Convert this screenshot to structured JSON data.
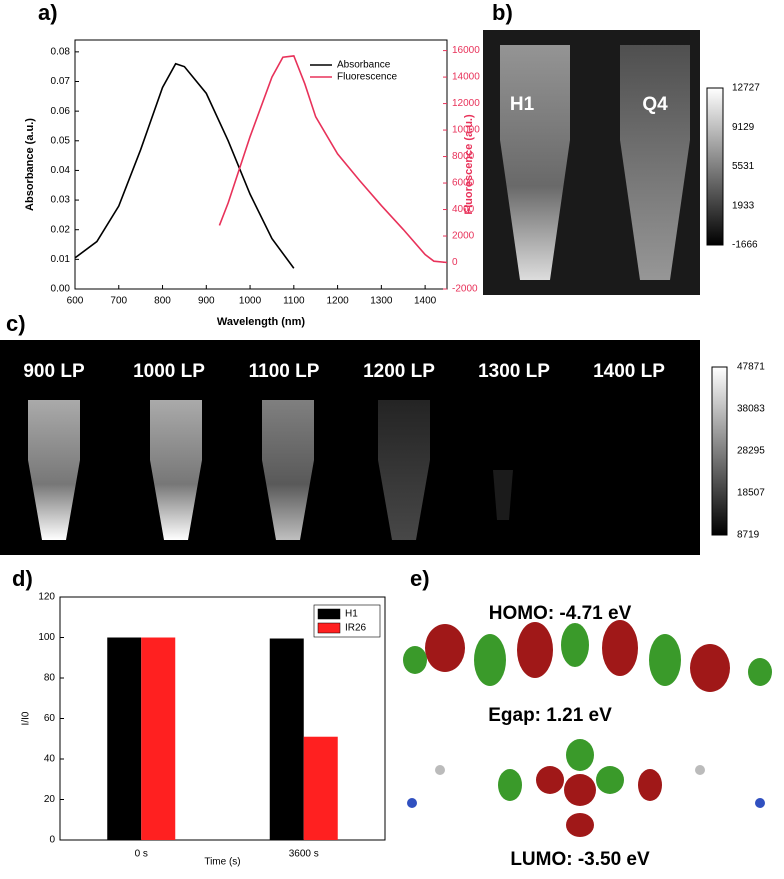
{
  "chart_data": [
    {
      "type": "line",
      "panel_label": "a)",
      "xlabel": "Wavelength (nm)",
      "ylabel": "Absorbance (a.u.)",
      "y2label": "Fluorescence (a.u.)",
      "xlim": [
        600,
        1450
      ],
      "xticks": [
        600,
        700,
        800,
        900,
        1000,
        1100,
        1200,
        1300,
        1400
      ],
      "ylim": [
        0,
        0.084
      ],
      "yticks": [
        {
          "value": 0,
          "label": "0.00"
        },
        0.01,
        0.02,
        0.03,
        0.04,
        0.05,
        0.06,
        0.07,
        0.08
      ],
      "y2lim": [
        -2000,
        16800
      ],
      "y2ticks": [
        -2000,
        0,
        2000,
        4000,
        6000,
        8000,
        10000,
        12000,
        14000,
        16000
      ],
      "legend": "upper right",
      "series": [
        {
          "name": "Absorbance",
          "color": "#000000",
          "x": [
            600,
            650,
            700,
            750,
            800,
            830,
            850,
            900,
            950,
            1000,
            1050,
            1100
          ],
          "values": [
            0.0105,
            0.016,
            0.028,
            0.047,
            0.068,
            0.076,
            0.075,
            0.066,
            0.05,
            0.032,
            0.017,
            0.007
          ]
        },
        {
          "name": "Fluorescence",
          "color": "#e8325a",
          "axis": "y2",
          "x": [
            930,
            950,
            1000,
            1050,
            1075,
            1100,
            1125,
            1150,
            1200,
            1250,
            1300,
            1350,
            1400,
            1420,
            1450
          ],
          "values": [
            2800,
            4500,
            9500,
            14000,
            15500,
            15600,
            13500,
            11000,
            8200,
            6200,
            4300,
            2500,
            600,
            100,
            0
          ]
        }
      ]
    },
    {
      "type": "bar",
      "panel_label": "d)",
      "xlabel": "Time (s)",
      "ylabel": "I/I0",
      "categories": [
        "0 s",
        "3600 s"
      ],
      "ylim": [
        0,
        120
      ],
      "yticks": [
        0,
        20,
        40,
        60,
        80,
        100,
        120
      ],
      "legend": "upper right",
      "series": [
        {
          "name": "H1",
          "color": "#000000",
          "values": [
            100,
            99.5
          ]
        },
        {
          "name": "IR26",
          "color": "#ff2020",
          "values": [
            100,
            51
          ]
        }
      ]
    }
  ],
  "panels": {
    "b": {
      "label": "b)",
      "tubes": [
        "H1",
        "Q4"
      ],
      "colorbar": [
        12727,
        9129,
        5531,
        1933,
        -1666
      ]
    },
    "c": {
      "label": "c)",
      "filters": [
        "900 LP",
        "1000 LP",
        "1100 LP",
        "1200 LP",
        "1300 LP",
        "1400 LP"
      ],
      "colorbar": [
        47871,
        38083,
        28295,
        18507,
        8719
      ]
    },
    "e": {
      "label": "e)",
      "homo": "HOMO: -4.71 eV",
      "egap": "Egap: 1.21 eV",
      "lumo": "LUMO: -3.50 eV"
    }
  }
}
